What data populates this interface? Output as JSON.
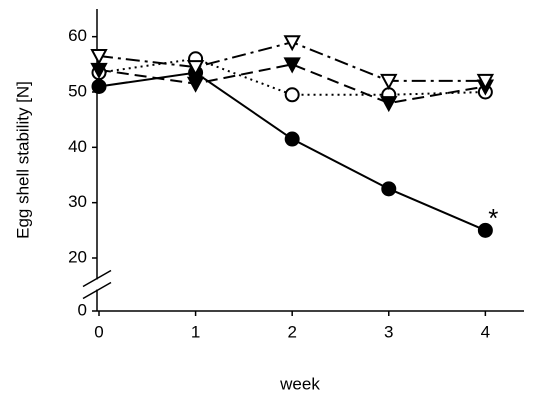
{
  "chart_data": {
    "type": "line",
    "x_label": "week",
    "y_label": "Egg shell stability [N]",
    "x": [
      0,
      1,
      2,
      3,
      4
    ],
    "xlim": [
      0,
      4.4
    ],
    "xticks": [
      0,
      1,
      2,
      3,
      4
    ],
    "ylim": [
      0,
      65
    ],
    "y_break": [
      0,
      20
    ],
    "yticks": [
      0,
      20,
      30,
      40,
      50,
      60
    ],
    "annotation": "*",
    "series": [
      {
        "color": "#000000",
        "marker": "circle",
        "filled": true,
        "dash": "solid",
        "values": [
          51,
          53.5,
          41.5,
          32.5,
          25
        ]
      },
      {
        "color": "#000000",
        "marker": "circle",
        "filled": false,
        "dash": "dot",
        "values": [
          53.5,
          56,
          49.5,
          49.5,
          50
        ]
      },
      {
        "color": "#000000",
        "marker": "triangle-down",
        "filled": true,
        "dash": "dash",
        "values": [
          54,
          51.5,
          55,
          48,
          51
        ]
      },
      {
        "color": "#000000",
        "marker": "triangle-down",
        "filled": false,
        "dash": "dashdot",
        "values": [
          56.5,
          54.5,
          59,
          52,
          52
        ]
      }
    ]
  }
}
